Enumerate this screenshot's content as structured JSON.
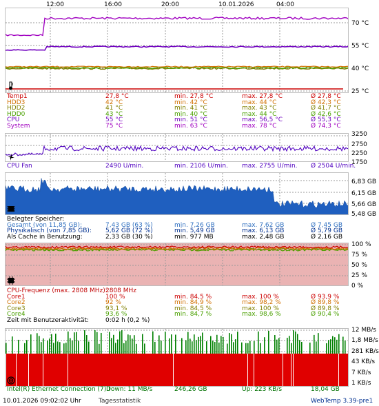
{
  "time_axis": [
    "12:00",
    "16:00",
    "20:00",
    "10.01.2026",
    "04:00"
  ],
  "temp": {
    "axis": [
      "70 °C",
      "55 °C",
      "40 °C",
      "25 °C"
    ],
    "rows": [
      {
        "name": "Temp1",
        "cur": "27,8 °C",
        "min": "min. 27,8 °C",
        "max": "max. 27,8 °C",
        "avg": "Ø 27,8 °C",
        "color": "#cc0000"
      },
      {
        "name": "HDD3",
        "cur": "42 °C",
        "min": "min. 42 °C",
        "max": "max. 44 °C",
        "avg": "Ø 42,3 °C",
        "color": "#d07000"
      },
      {
        "name": "HDD2",
        "cur": "41 °C",
        "min": "min. 41 °C",
        "max": "max. 43 °C",
        "avg": "Ø 41,7 °C",
        "color": "#808000"
      },
      {
        "name": "HDD0",
        "cur": "43 °C",
        "min": "min. 40 °C",
        "max": "max. 44 °C",
        "avg": "Ø 42,6 °C",
        "color": "#4aa000"
      },
      {
        "name": "CPU",
        "cur": "55 °C",
        "min": "min. 51 °C",
        "max": "max. 56,5 °C",
        "avg": "Ø 55,3 °C",
        "color": "#7000c0"
      },
      {
        "name": "System",
        "cur": "75 °C",
        "min": "min. 63 °C",
        "max": "max. 78 °C",
        "avg": "Ø 74,3 °C",
        "color": "#a000c0"
      }
    ]
  },
  "fan": {
    "axis": [
      "3250",
      "2750",
      "2250",
      "1750"
    ],
    "row": {
      "name": "CPU Fan",
      "cur": "2490 U/min.",
      "min": "min. 2106 U/min.",
      "max": "max. 2755 U/min.",
      "avg": "Ø 2504 U/min.",
      "color": "#5000c0"
    }
  },
  "memory": {
    "axis": [
      "6,83 GB",
      "6,15 GB",
      "5,66 GB",
      "5,48 GB"
    ],
    "title": "Belegter Speicher:",
    "rows": [
      {
        "name": "Gesamt (von 11,85 GB):",
        "cur": "7,43 GB (63 %)",
        "min": "min. 7,26 GB",
        "max": "max. 7,62 GB",
        "avg": "Ø 7,45 GB",
        "color": "#3070c0"
      },
      {
        "name": "Physikalisch (von 7,85 GB):",
        "cur": "5,62 GB (72 %)",
        "min": "min. 5,49 GB",
        "max": "max. 6,13 GB",
        "avg": "Ø 5,79 GB",
        "color": "#003090"
      },
      {
        "name": "Als Cache in Benutzung:",
        "cur": "2,33 GB (30 %)",
        "min": "min. 977 MB",
        "max": "max. 2,48 GB",
        "avg": "Ø 2,16 GB",
        "color": "#000000"
      }
    ]
  },
  "cpu": {
    "axis": [
      "100 %",
      "75 %",
      "50 %",
      "25 %",
      "0 %"
    ],
    "freq_label": "CPU-Frequenz (max. 2808 MHz):",
    "freq_value": "2808 MHz",
    "freq_color": "#c00000",
    "rows": [
      {
        "name": "Core1",
        "cur": "100 %",
        "min": "min. 84,5 %",
        "max": "max. 100 %",
        "avg": "Ø 93,9 %",
        "color": "#cc0000"
      },
      {
        "name": "Core2",
        "cur": "92 %",
        "min": "min. 84,9 %",
        "max": "max. 98,2 %",
        "avg": "Ø 89,8 %",
        "color": "#d07000"
      },
      {
        "name": "Core3",
        "cur": "93,1 %",
        "min": "min. 84,5 %",
        "max": "max. 100 %",
        "avg": "Ø 89,8 %",
        "color": "#808000"
      },
      {
        "name": "Core4",
        "cur": "93,6 %",
        "min": "min. 84,7 %",
        "max": "max. 98,6 %",
        "avg": "Ø 90,4 %",
        "color": "#4aa000"
      }
    ],
    "activity_label": "Zeit mit Benutzeraktivität:",
    "activity_value": "0:02 h (0,2 %)"
  },
  "network": {
    "axis": [
      "12 MB/s",
      "1,8 MB/s",
      "281 KB/s",
      "43 KB/s",
      "7 KB/s",
      "1 KB/s"
    ],
    "adapter": "Intel(R) Ethernet Connection (7) I",
    "down": "Down: 11 MB/s",
    "down_total": "246,26 GB",
    "up": "Up: 223 KB/s",
    "up_total": "18,04 GB",
    "color": "#007000"
  },
  "footer": {
    "datetime": "10.01.2026 09:02:02 Uhr",
    "stats_link": "Tagesstatistik",
    "version": "WebTemp 3.39-pre1"
  }
}
